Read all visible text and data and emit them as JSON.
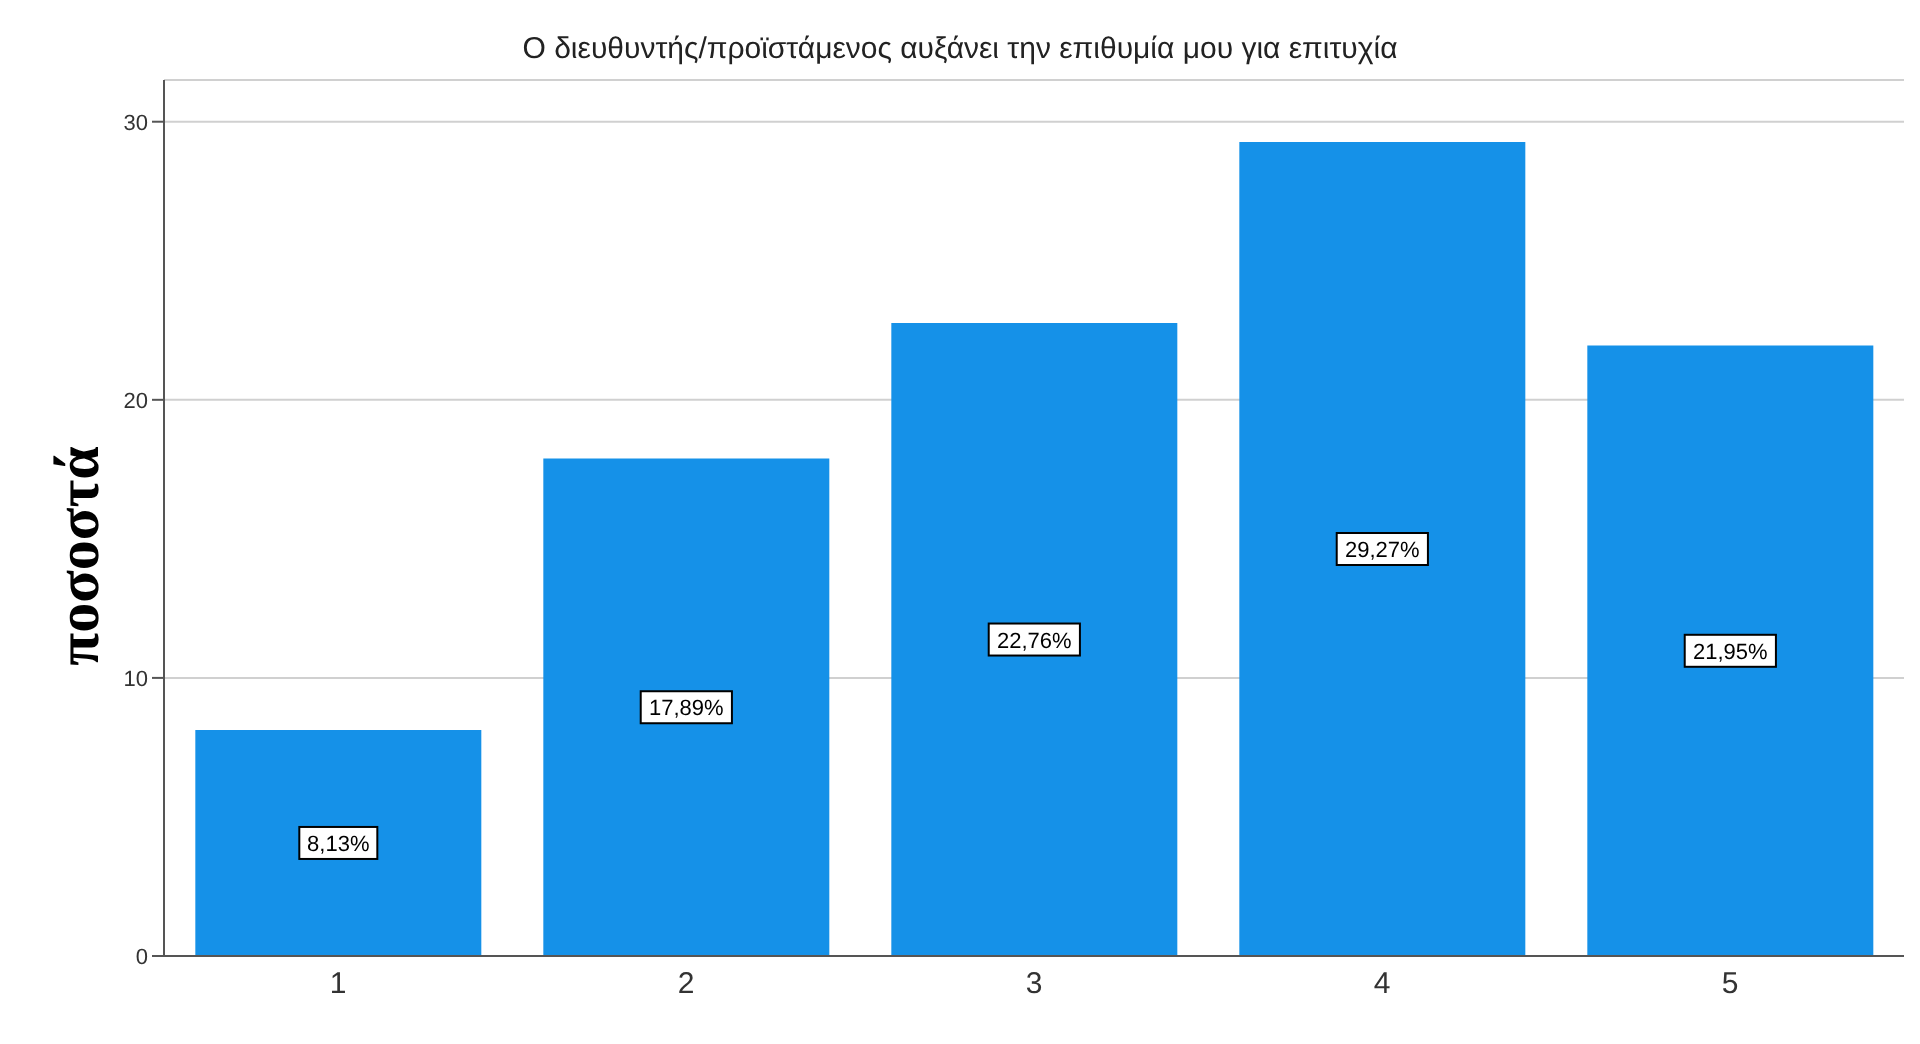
{
  "chart_data": {
    "type": "bar",
    "title": "Ο διευθυντής/προϊστάμενος αυξάνει την επιθυμία μου για επιτυχία",
    "ylabel": "ποσοστά",
    "categories": [
      "1",
      "2",
      "3",
      "4",
      "5"
    ],
    "values": [
      8.13,
      17.89,
      22.76,
      29.27,
      21.95
    ],
    "value_labels": [
      "8,13%",
      "17,89%",
      "22,76%",
      "29,27%",
      "21,95%"
    ],
    "color": "#1591e8",
    "ylim": [
      0,
      31.5
    ],
    "yticks": [
      0,
      10,
      20,
      30
    ],
    "grid": "y"
  }
}
